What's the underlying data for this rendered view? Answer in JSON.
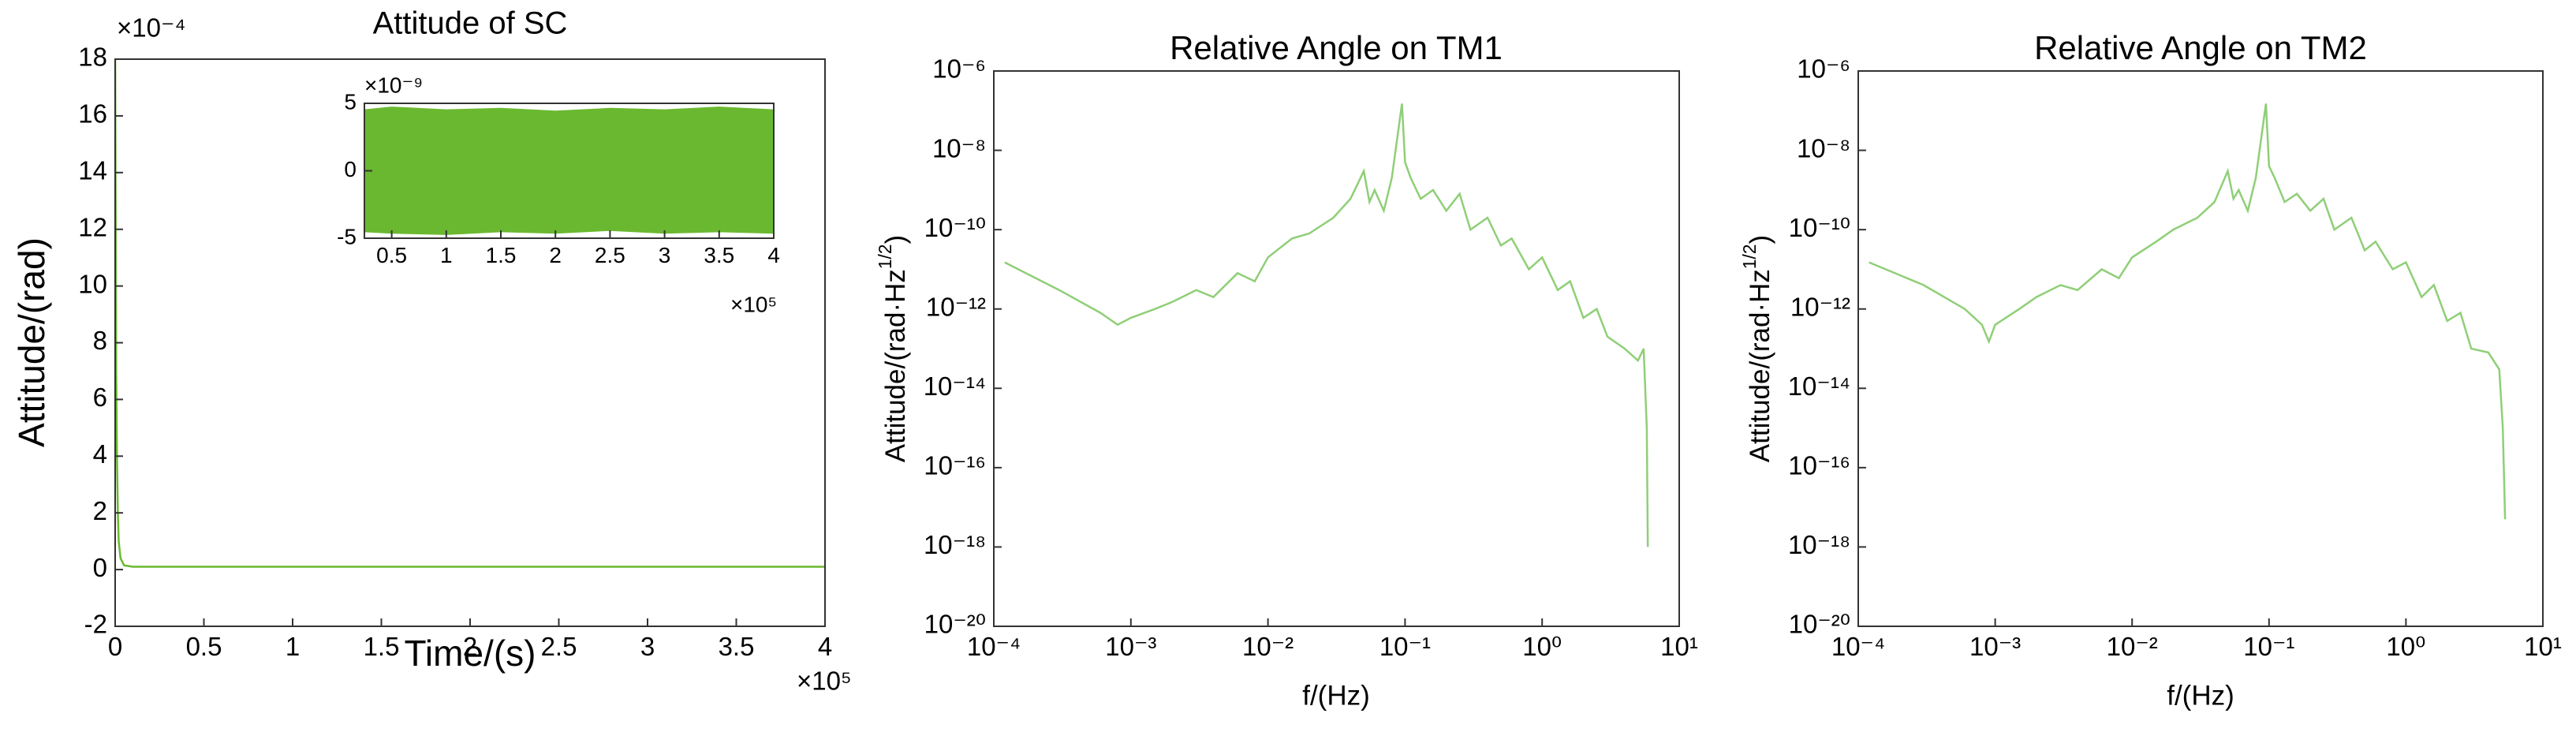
{
  "chart_data": [
    {
      "type": "line",
      "title": "Attitude of SC",
      "xlabel": "Time/(s)",
      "ylabel": "Attitude/(rad)",
      "x_multiplier": "×10⁵",
      "y_multiplier": "×10⁻⁴",
      "xlim": [
        0,
        4
      ],
      "ylim": [
        -2,
        18
      ],
      "xticks": [
        0,
        0.5,
        1,
        1.5,
        2,
        2.5,
        3,
        3.5,
        4
      ],
      "yticks": [
        -2,
        0,
        2,
        4,
        6,
        8,
        10,
        12,
        14,
        16,
        18
      ],
      "series": [
        {
          "color": "#6ab830",
          "x": [
            0,
            0.003,
            0.006,
            0.01,
            0.015,
            0.02,
            0.03,
            0.05,
            0.1,
            1,
            2,
            3,
            4
          ],
          "values": [
            18,
            12,
            7,
            4,
            2,
            1,
            0.4,
            0.15,
            0.1,
            0.1,
            0.1,
            0.1,
            0.1
          ]
        }
      ]
    },
    {
      "type": "band",
      "x_multiplier": "×10⁵",
      "y_multiplier": "×10⁻⁹",
      "xlim": [
        0.25,
        4
      ],
      "ylim": [
        -5,
        5
      ],
      "xticks": [
        0.5,
        1,
        1.5,
        2,
        2.5,
        3,
        3.5,
        4
      ],
      "yticks": [
        -5,
        0,
        5
      ],
      "color": "#6ab830",
      "x": [
        0.25,
        0.5,
        1,
        1.5,
        2,
        2.5,
        3,
        3.5,
        4
      ],
      "upper": [
        4.5,
        4.7,
        4.5,
        4.6,
        4.4,
        4.6,
        4.5,
        4.7,
        4.5
      ],
      "lower": [
        -4.5,
        -4.6,
        -4.7,
        -4.5,
        -4.6,
        -4.4,
        -4.6,
        -4.5,
        -4.6
      ]
    },
    {
      "type": "line",
      "title": "Relative Angle on TM1",
      "xlabel": "f/(Hz)",
      "ylabel": "Attitude/(rad·Hz",
      "ylabel_sup": "1/2",
      "ylabel_end": ")",
      "xscale": "log",
      "yscale": "log",
      "xlim": [
        0.0001,
        10
      ],
      "ylim": [
        1e-20,
        1e-06
      ],
      "xticks": [
        {
          "value": 0.0001,
          "label": "10⁻⁴"
        },
        {
          "value": 0.001,
          "label": "10⁻³"
        },
        {
          "value": 0.01,
          "label": "10⁻²"
        },
        {
          "value": 0.1,
          "label": "10⁻¹"
        },
        {
          "value": 1,
          "label": "10⁰"
        },
        {
          "value": 10,
          "label": "10¹"
        }
      ],
      "yticks": [
        {
          "value": 1e-20,
          "label": "10⁻²⁰"
        },
        {
          "value": 1e-18,
          "label": "10⁻¹⁸"
        },
        {
          "value": 1e-16,
          "label": "10⁻¹⁶"
        },
        {
          "value": 1e-14,
          "label": "10⁻¹⁴"
        },
        {
          "value": 1e-12,
          "label": "10⁻¹²"
        },
        {
          "value": 1e-10,
          "label": "10⁻¹⁰"
        },
        {
          "value": 1e-08,
          "label": "10⁻⁸"
        },
        {
          "value": 1e-06,
          "label": "10⁻⁶"
        }
      ],
      "series": [
        {
          "color": "#8fcf77",
          "x": [
            0.00012,
            0.0003,
            0.0006,
            0.0008,
            0.001,
            0.0015,
            0.002,
            0.003,
            0.004,
            0.006,
            0.008,
            0.01,
            0.015,
            0.02,
            0.03,
            0.04,
            0.05,
            0.055,
            0.06,
            0.07,
            0.08,
            0.095,
            0.1,
            0.11,
            0.13,
            0.16,
            0.2,
            0.25,
            0.3,
            0.4,
            0.5,
            0.6,
            0.8,
            1,
            1.3,
            1.6,
            2,
            2.5,
            3,
            4,
            5,
            5.5,
            5.8,
            5.9
          ],
          "values": [
            1.5e-11,
            3e-12,
            8e-13,
            4e-13,
            6e-13,
            1e-12,
            1.5e-12,
            3e-12,
            2e-12,
            8e-12,
            5e-12,
            2e-11,
            6e-11,
            8e-11,
            2e-10,
            6e-10,
            3e-09,
            5e-10,
            1e-09,
            3e-10,
            2e-09,
            1.5e-07,
            5e-09,
            2e-09,
            6e-10,
            1e-09,
            3e-10,
            8e-10,
            1e-10,
            2e-10,
            4e-11,
            6e-11,
            1e-11,
            2e-11,
            3e-12,
            5e-12,
            6e-13,
            1e-12,
            2e-13,
            1e-13,
            5e-14,
            1e-13,
            1e-15,
            1e-18
          ]
        }
      ]
    },
    {
      "type": "line",
      "title": "Relative Angle on TM2",
      "xlabel": "f/(Hz)",
      "ylabel": "Attitude/(rad·Hz",
      "ylabel_sup": "1/2",
      "ylabel_end": ")",
      "xscale": "log",
      "yscale": "log",
      "xlim": [
        0.0001,
        10
      ],
      "ylim": [
        1e-20,
        1e-06
      ],
      "xticks": [
        {
          "value": 0.0001,
          "label": "10⁻⁴"
        },
        {
          "value": 0.001,
          "label": "10⁻³"
        },
        {
          "value": 0.01,
          "label": "10⁻²"
        },
        {
          "value": 0.1,
          "label": "10⁻¹"
        },
        {
          "value": 1,
          "label": "10⁰"
        },
        {
          "value": 10,
          "label": "10¹"
        }
      ],
      "yticks": [
        {
          "value": 1e-20,
          "label": "10⁻²⁰"
        },
        {
          "value": 1e-18,
          "label": "10⁻¹⁸"
        },
        {
          "value": 1e-16,
          "label": "10⁻¹⁶"
        },
        {
          "value": 1e-14,
          "label": "10⁻¹⁴"
        },
        {
          "value": 1e-12,
          "label": "10⁻¹²"
        },
        {
          "value": 1e-10,
          "label": "10⁻¹⁰"
        },
        {
          "value": 1e-08,
          "label": "10⁻⁸"
        },
        {
          "value": 1e-06,
          "label": "10⁻⁶"
        }
      ],
      "series": [
        {
          "color": "#8fcf77",
          "x": [
            0.00012,
            0.0003,
            0.0006,
            0.0008,
            0.0009,
            0.001,
            0.0015,
            0.002,
            0.003,
            0.004,
            0.006,
            0.008,
            0.01,
            0.015,
            0.02,
            0.03,
            0.04,
            0.05,
            0.055,
            0.06,
            0.07,
            0.08,
            0.095,
            0.1,
            0.11,
            0.13,
            0.16,
            0.2,
            0.25,
            0.3,
            0.4,
            0.5,
            0.6,
            0.8,
            1,
            1.3,
            1.6,
            2,
            2.5,
            3,
            4,
            4.8,
            5.1,
            5.3
          ],
          "values": [
            1.5e-11,
            4e-12,
            1e-12,
            4e-13,
            1.5e-13,
            4e-13,
            1e-12,
            2e-12,
            4e-12,
            3e-12,
            1e-11,
            6e-12,
            2e-11,
            5e-11,
            1e-10,
            2e-10,
            5e-10,
            3e-09,
            6e-10,
            1e-09,
            3e-10,
            2e-09,
            1.5e-07,
            4e-09,
            2e-09,
            5e-10,
            8e-10,
            3e-10,
            6e-10,
            1e-10,
            2e-10,
            3e-11,
            5e-11,
            1e-11,
            1.5e-11,
            2e-12,
            4e-12,
            5e-13,
            8e-13,
            1e-13,
            8e-14,
            3e-14,
            1e-15,
            5e-18
          ]
        }
      ]
    }
  ]
}
